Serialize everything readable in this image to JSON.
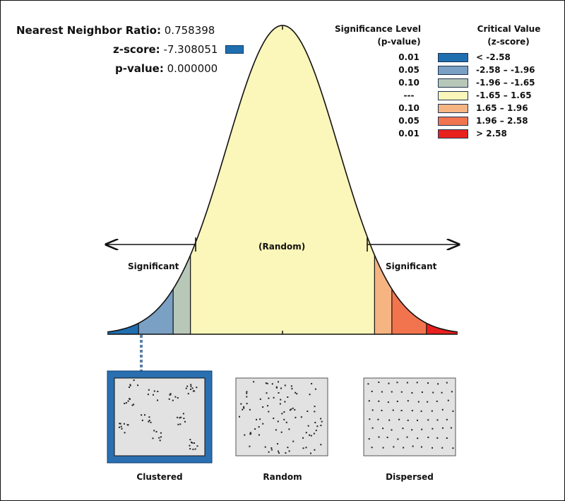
{
  "stats": {
    "nn_ratio_label": "Nearest Neighbor Ratio:",
    "nn_ratio_value": "0.758398",
    "zscore_label": "z-score:",
    "zscore_value": "-7.308051",
    "pvalue_label": "p-value:",
    "pvalue_value": "0.000000",
    "zscore_swatch_color": "#1f6fb0"
  },
  "legend": {
    "sig_header_1": "Significance Level",
    "sig_header_2": "(p-value)",
    "crit_header_1": "Critical Value",
    "crit_header_2": "(z-score)",
    "rows": [
      {
        "p": "0.01",
        "range": "< -2.58",
        "color": "#1f6fb0"
      },
      {
        "p": "0.05",
        "range": "-2.58 – -1.96",
        "color": "#7aa0c4"
      },
      {
        "p": "0.10",
        "range": "-1.96 – -1.65",
        "color": "#b8c8b8"
      },
      {
        "p": "---",
        "range": "-1.65 – 1.65",
        "color": "#fbf6b9"
      },
      {
        "p": "0.10",
        "range": "1.65 – 1.96",
        "color": "#f6b483"
      },
      {
        "p": "0.05",
        "range": "1.96 – 2.58",
        "color": "#f2744f"
      },
      {
        "p": "0.01",
        "range": "> 2.58",
        "color": "#e8201e"
      }
    ]
  },
  "curve": {
    "random_label": "(Random)",
    "left_label": "Significant",
    "right_label": "Significant"
  },
  "patterns": [
    {
      "label": "Clustered",
      "selected": true
    },
    {
      "label": "Random",
      "selected": false
    },
    {
      "label": "Dispersed",
      "selected": false
    }
  ]
}
